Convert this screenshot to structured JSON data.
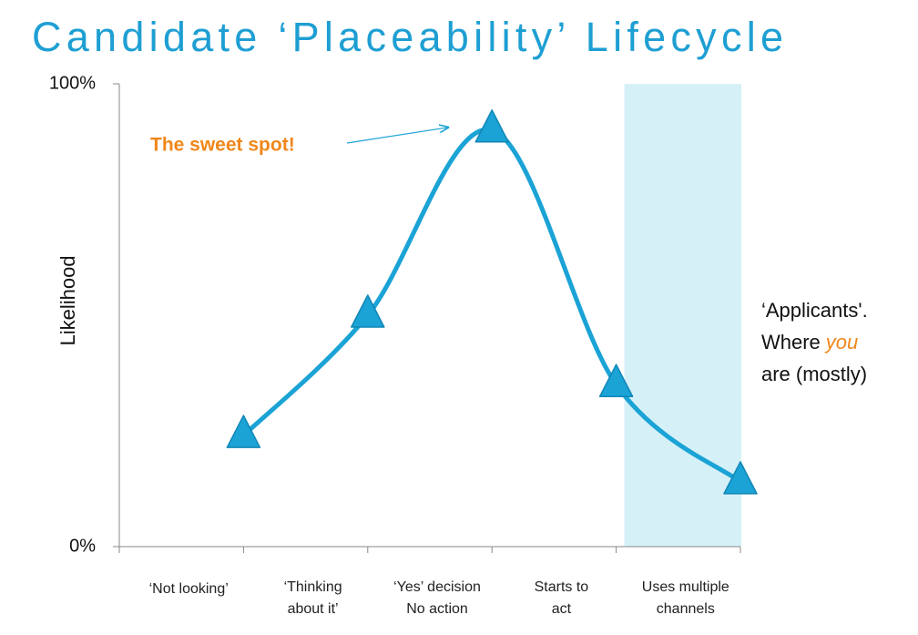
{
  "chart_data": {
    "type": "line",
    "title": "Candidate ‘Placeability’ Lifecycle",
    "y_label": "Likelihood",
    "categories": [
      [
        "‘Not looking’"
      ],
      [
        "‘Thinking",
        "about it’"
      ],
      [
        "‘Yes’ decision",
        "No action"
      ],
      [
        "Starts to",
        "act"
      ],
      [
        "Uses multiple",
        "channels"
      ]
    ],
    "values": [
      24,
      50,
      90,
      35,
      14
    ],
    "color": "#1ba3d6",
    "marker": "triangle",
    "ylim": [
      0,
      100
    ],
    "yticks": [
      {
        "value": 0,
        "label": "0%"
      },
      {
        "value": 100,
        "label": "100%"
      }
    ],
    "highlight_category": 4,
    "highlight_color": "#d6f0f8",
    "callout": {
      "text": "The sweet spot!",
      "color": "#f0871a",
      "target_index": 2
    },
    "side_note": {
      "line1": "‘Applicants'.",
      "line2": "Where",
      "emphasis": "you",
      "line3": "are (mostly)",
      "emphasis_color": "#f0871a"
    }
  }
}
